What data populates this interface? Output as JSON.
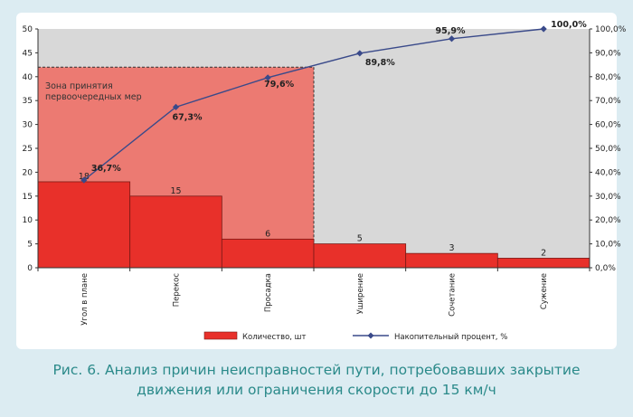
{
  "caption": {
    "line1": "Рис. 6. Анализ причин неисправностей пути, потребовавших закрытие",
    "line2": "движения или ограничения скорости до 15 км/ч"
  },
  "zone_label": {
    "line1": "Зона принятия",
    "line2": "первоочередных мер"
  },
  "colors": {
    "bar": "#e8302a",
    "zone": "#ec7a72",
    "line": "#3a4a8a",
    "grey_area": "#d8d8d8"
  },
  "chart_data": {
    "type": "bar",
    "categories": [
      "Угол в плане",
      "Перекос",
      "Просадка",
      "Уширение",
      "Сочетание",
      "Сужение"
    ],
    "series": [
      {
        "name": "Количество, шт",
        "type": "bar",
        "axis": "left",
        "values": [
          18,
          15,
          6,
          5,
          3,
          2
        ],
        "value_labels": [
          "18",
          "15",
          "6",
          "5",
          "3",
          "2"
        ]
      },
      {
        "name": "Накопительный процент, %",
        "type": "line",
        "axis": "right",
        "values": [
          36.7,
          67.3,
          79.6,
          89.8,
          95.9,
          100.0
        ],
        "value_labels": [
          "36,7%",
          "67,3%",
          "79,6%",
          "89,8%",
          "95,9%",
          "100,0%"
        ]
      }
    ],
    "y_left": {
      "min": 0,
      "max": 50,
      "ticks": [
        "0",
        "5",
        "10",
        "15",
        "20",
        "25",
        "30",
        "35",
        "40",
        "45",
        "50"
      ]
    },
    "y_right": {
      "min": 0,
      "max": 100,
      "ticks": [
        "0,0%",
        "10,0%",
        "20,0%",
        "30,0%",
        "40,0%",
        "50,0%",
        "60,0%",
        "70,0%",
        "80,0%",
        "90,0%",
        "100,0%"
      ]
    },
    "highlight_zone": {
      "from_category": 0,
      "to_category": 2,
      "top_value": 42
    },
    "legend_position": "bottom",
    "grid": false
  }
}
